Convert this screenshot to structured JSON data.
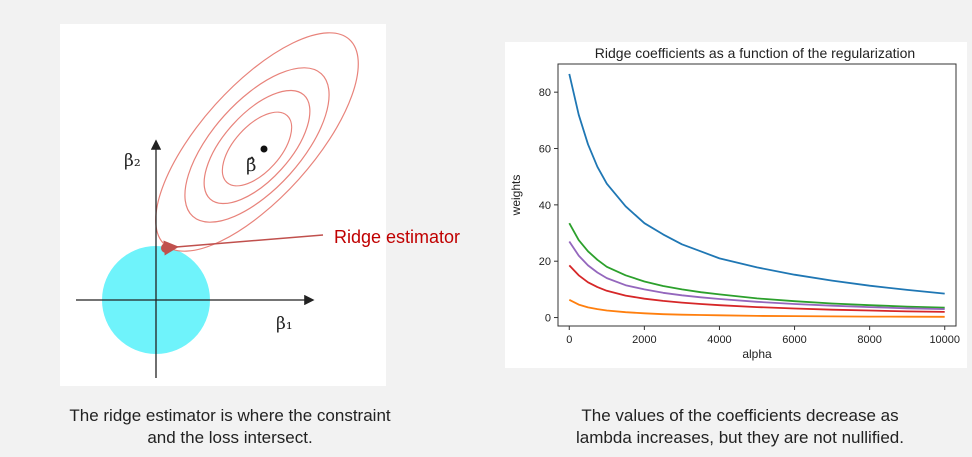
{
  "left_diagram": {
    "axis_y_label": "β₂",
    "axis_x_label": "β₁",
    "beta_hat_label": "β̂",
    "estimator_label": "Ridge estimator",
    "constraint_color": "#6ff3fb",
    "contour_color": "#e8837b",
    "arrow_color": "#c0504d",
    "label_color": "#c00000",
    "point_color": "#c0504d"
  },
  "captions": {
    "left_line1": "The ridge estimator is where the constraint",
    "left_line2": "and the loss intersect.",
    "right_line1": "The values of the coefficients decrease as",
    "right_line2": "lambda increases, but they are not nullified."
  },
  "chart_data": {
    "type": "line",
    "title": "Ridge coefficients as a function of the regularization",
    "xlabel": "alpha",
    "ylabel": "weights",
    "xlim": [
      -300,
      10300
    ],
    "ylim": [
      -3,
      90
    ],
    "xticks": [
      0,
      2000,
      4000,
      6000,
      8000,
      10000
    ],
    "yticks": [
      0,
      20,
      40,
      60,
      80
    ],
    "grid": false,
    "x": [
      0,
      250,
      500,
      750,
      1000,
      1500,
      2000,
      2500,
      3000,
      3500,
      4000,
      5000,
      6000,
      7000,
      8000,
      9000,
      10000
    ],
    "series": [
      {
        "color": "#1f77b4",
        "values": [
          86.5,
          72,
          61.5,
          53.5,
          47.5,
          39.5,
          33.5,
          29.5,
          26,
          23.5,
          21,
          17.8,
          15.2,
          13.1,
          11.3,
          9.8,
          8.5
        ]
      },
      {
        "color": "#2ca02c",
        "values": [
          33.5,
          27.5,
          23.5,
          20.5,
          18,
          15,
          12.8,
          11.2,
          10,
          9,
          8.2,
          6.8,
          5.8,
          5,
          4.4,
          3.9,
          3.5
        ]
      },
      {
        "color": "#9467bd",
        "values": [
          27,
          22,
          18.5,
          16,
          14,
          11.5,
          10,
          8.8,
          7.9,
          7.2,
          6.6,
          5.6,
          4.8,
          4.2,
          3.7,
          3.3,
          3
        ]
      },
      {
        "color": "#d62728",
        "values": [
          18.5,
          15,
          12.5,
          10.8,
          9.5,
          7.8,
          6.7,
          5.9,
          5.3,
          4.8,
          4.4,
          3.7,
          3.2,
          2.8,
          2.5,
          2.2,
          2
        ]
      },
      {
        "color": "#ff7f0e",
        "values": [
          6.3,
          4.6,
          3.6,
          3,
          2.5,
          1.9,
          1.5,
          1.2,
          1,
          0.9,
          0.8,
          0.6,
          0.5,
          0.4,
          0.35,
          0.3,
          0.25
        ]
      }
    ]
  }
}
